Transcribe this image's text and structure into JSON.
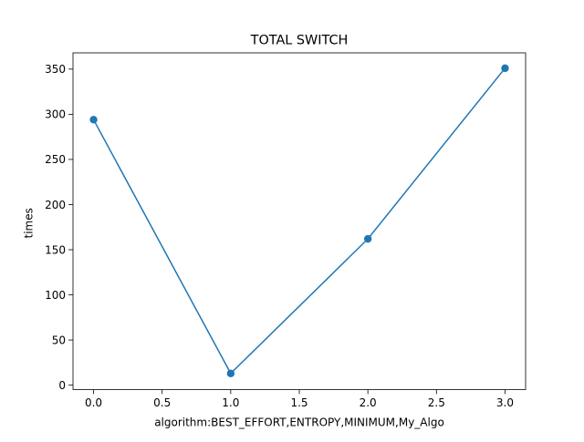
{
  "chart_data": {
    "type": "line",
    "title": "TOTAL SWITCH",
    "xlabel": "algorithm:BEST_EFFORT,ENTROPY,MINIMUM,My_Algo",
    "ylabel": "times",
    "x": [
      0,
      1,
      2,
      3
    ],
    "series": [
      {
        "values": [
          294,
          13,
          162,
          351
        ],
        "marker": "circle",
        "color": "#1f77b4"
      }
    ],
    "xlim": [
      -0.15,
      3.15
    ],
    "ylim": [
      -4.9,
      368
    ],
    "xticks": [
      0.0,
      0.5,
      1.0,
      1.5,
      2.0,
      2.5,
      3.0
    ],
    "xtick_labels": [
      "0.0",
      "0.5",
      "1.0",
      "1.5",
      "2.0",
      "2.5",
      "3.0"
    ],
    "yticks": [
      0,
      50,
      100,
      150,
      200,
      250,
      300,
      350
    ],
    "ytick_labels": [
      "0",
      "50",
      "100",
      "150",
      "200",
      "250",
      "300",
      "350"
    ],
    "grid": false,
    "legend": "none"
  }
}
